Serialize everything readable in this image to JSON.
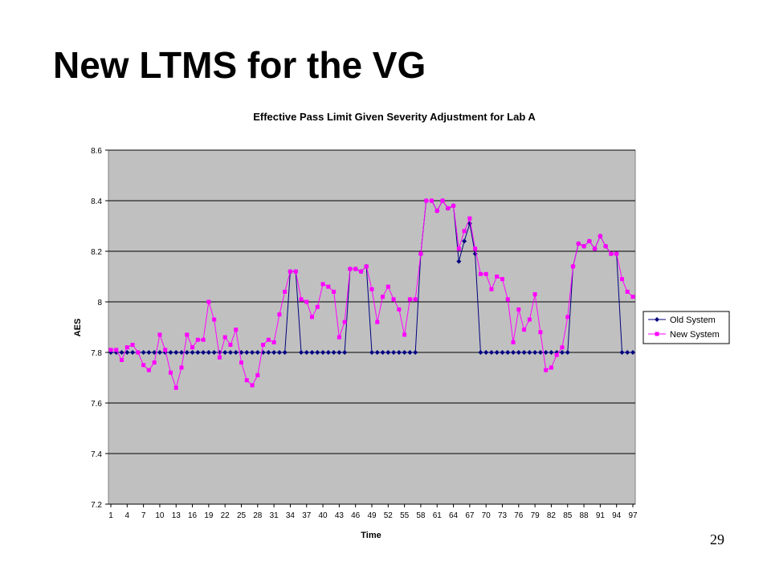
{
  "slide": {
    "title": "New LTMS for the VG",
    "page_number": "29"
  },
  "chart_data": {
    "type": "line",
    "title": "Effective Pass Limit Given Severity Adjustment for Lab A",
    "xlabel": "Time",
    "ylabel": "AES",
    "ylim": [
      7.2,
      8.6
    ],
    "yticks": [
      "7.2",
      "7.4",
      "7.6",
      "7.8",
      "8",
      "8.2",
      "8.4",
      "8.6"
    ],
    "xlim": [
      1,
      97
    ],
    "xticks": [
      "1",
      "4",
      "7",
      "10",
      "13",
      "16",
      "19",
      "22",
      "25",
      "28",
      "31",
      "34",
      "37",
      "40",
      "43",
      "46",
      "49",
      "52",
      "55",
      "58",
      "61",
      "64",
      "67",
      "70",
      "73",
      "76",
      "79",
      "82",
      "85",
      "88",
      "91",
      "94",
      "97"
    ],
    "grid": "horizontal",
    "legend_position": "right",
    "plot_background": "#c0c0c0",
    "series": [
      {
        "name": "Old System",
        "color": "#000080",
        "marker": "diamond",
        "x": [
          1,
          2,
          3,
          4,
          5,
          6,
          7,
          8,
          9,
          10,
          11,
          12,
          13,
          14,
          15,
          16,
          17,
          18,
          19,
          20,
          21,
          22,
          23,
          24,
          25,
          26,
          27,
          28,
          29,
          30,
          31,
          32,
          33,
          34,
          35,
          36,
          37,
          38,
          39,
          40,
          41,
          42,
          43,
          44,
          45,
          46,
          47,
          48,
          49,
          50,
          51,
          52,
          53,
          54,
          55,
          56,
          57,
          58,
          59,
          60,
          61,
          62,
          63,
          64,
          65,
          66,
          67,
          68,
          69,
          70,
          71,
          72,
          73,
          74,
          75,
          76,
          77,
          78,
          79,
          80,
          81,
          82,
          83,
          84,
          85,
          86,
          87,
          88,
          89,
          90,
          91,
          92,
          93,
          94,
          95,
          96,
          97
        ],
        "values": [
          7.8,
          7.8,
          7.8,
          7.8,
          7.8,
          7.8,
          7.8,
          7.8,
          7.8,
          7.8,
          7.8,
          7.8,
          7.8,
          7.8,
          7.8,
          7.8,
          7.8,
          7.8,
          7.8,
          7.8,
          7.8,
          7.8,
          7.8,
          7.8,
          7.8,
          7.8,
          7.8,
          7.8,
          7.8,
          7.8,
          7.8,
          7.8,
          7.8,
          8.12,
          8.12,
          7.8,
          7.8,
          7.8,
          7.8,
          7.8,
          7.8,
          7.8,
          7.8,
          7.8,
          8.13,
          8.13,
          8.12,
          8.14,
          7.8,
          7.8,
          7.8,
          7.8,
          7.8,
          7.8,
          7.8,
          7.8,
          7.8,
          8.19,
          8.4,
          8.4,
          8.36,
          8.4,
          8.37,
          8.38,
          8.16,
          8.24,
          8.31,
          8.19,
          7.8,
          7.8,
          7.8,
          7.8,
          7.8,
          7.8,
          7.8,
          7.8,
          7.8,
          7.8,
          7.8,
          7.8,
          7.8,
          7.8,
          7.8,
          7.8,
          7.8,
          8.14,
          8.23,
          8.22,
          8.24,
          8.21,
          8.26,
          8.22,
          8.19,
          8.19,
          7.8,
          7.8,
          7.8
        ]
      },
      {
        "name": "New System",
        "color": "#ff00ff",
        "marker": "square",
        "x": [
          1,
          2,
          3,
          4,
          5,
          6,
          7,
          8,
          9,
          10,
          11,
          12,
          13,
          14,
          15,
          16,
          17,
          18,
          19,
          20,
          21,
          22,
          23,
          24,
          25,
          26,
          27,
          28,
          29,
          30,
          31,
          32,
          33,
          34,
          35,
          36,
          37,
          38,
          39,
          40,
          41,
          42,
          43,
          44,
          45,
          46,
          47,
          48,
          49,
          50,
          51,
          52,
          53,
          54,
          55,
          56,
          57,
          58,
          59,
          60,
          61,
          62,
          63,
          64,
          65,
          66,
          67,
          68,
          69,
          70,
          71,
          72,
          73,
          74,
          75,
          76,
          77,
          78,
          79,
          80,
          81,
          82,
          83,
          84,
          85,
          86,
          87,
          88,
          89,
          90,
          91,
          92,
          93,
          94,
          95,
          96,
          97
        ],
        "values": [
          7.81,
          7.81,
          7.77,
          7.82,
          7.83,
          7.8,
          7.75,
          7.73,
          7.76,
          7.87,
          7.81,
          7.72,
          7.66,
          7.74,
          7.87,
          7.82,
          7.85,
          7.85,
          8.0,
          7.93,
          7.78,
          7.86,
          7.83,
          7.89,
          7.76,
          7.69,
          7.67,
          7.71,
          7.83,
          7.85,
          7.84,
          7.95,
          8.04,
          8.12,
          8.12,
          8.01,
          8.0,
          7.94,
          7.98,
          8.07,
          8.06,
          8.04,
          7.86,
          7.92,
          8.13,
          8.13,
          8.12,
          8.14,
          8.05,
          7.92,
          8.02,
          8.06,
          8.01,
          7.97,
          7.87,
          8.01,
          8.01,
          8.19,
          8.4,
          8.4,
          8.36,
          8.4,
          8.37,
          8.38,
          8.21,
          8.28,
          8.33,
          8.21,
          8.11,
          8.11,
          8.05,
          8.1,
          8.09,
          8.01,
          7.84,
          7.97,
          7.89,
          7.93,
          8.03,
          7.88,
          7.73,
          7.74,
          7.79,
          7.82,
          7.94,
          8.14,
          8.23,
          8.22,
          8.24,
          8.21,
          8.26,
          8.22,
          8.19,
          8.19,
          8.09,
          8.04,
          8.02
        ]
      }
    ]
  }
}
